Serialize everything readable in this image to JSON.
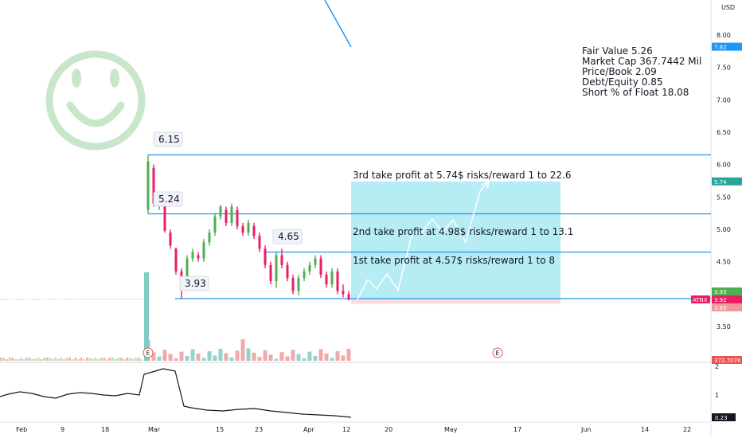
{
  "chart_data": {
    "type": "candlestick",
    "ticker": "ATNX",
    "currency": "USD",
    "y_axis_ticks": [
      "8.00",
      "7.50",
      "7.00",
      "6.50",
      "6.00",
      "5.50",
      "5.00",
      "4.50",
      "4.00",
      "3.50"
    ],
    "y_axis_range": [
      3.0,
      8.5
    ],
    "x_axis_ticks": [
      "Feb",
      "9",
      "18",
      "Mar",
      "15",
      "23",
      "Apr",
      "12",
      "20",
      "May",
      "17",
      "Jun",
      "14",
      "22"
    ],
    "price_tags": [
      {
        "text": "7.82",
        "value": 7.82,
        "color": "#2196f3"
      },
      {
        "text": "5.74",
        "value": 5.74,
        "color": "#26a69a"
      },
      {
        "text": "3.93",
        "value": 3.93,
        "color": "#4caf50"
      },
      {
        "text": "ATNX",
        "value": 3.92,
        "color": "#e91e63"
      },
      {
        "text": "3.92",
        "value": 3.92,
        "color": "#e91e63"
      },
      {
        "text": "3.85",
        "value": 3.85,
        "color": "#ef9a9a"
      },
      {
        "text": "372.707K",
        "value": null,
        "color": "#ef5350"
      }
    ],
    "levels": [
      {
        "price": 6.15,
        "label": "6.15"
      },
      {
        "price": 5.24,
        "label": "5.24"
      },
      {
        "price": 4.65,
        "label": "4.65"
      },
      {
        "price": 3.93,
        "label": "3.93"
      }
    ],
    "targets": [
      {
        "label": "3rd take profit at 5.74$ risks/reward 1 to 22.6",
        "price": 5.74
      },
      {
        "label": "2nd take profit at 4.98$ risks/reward 1 to 13.1",
        "price": 4.98
      },
      {
        "label": "1st take profit at 4.57$ risks/reward 1 to 8",
        "price": 4.57
      }
    ],
    "stop_zone": [
      3.85,
      3.93
    ],
    "profit_zone": [
      3.93,
      5.74
    ],
    "candles": [
      {
        "o": 5.3,
        "h": 6.15,
        "l": 5.24,
        "c": 6.05
      },
      {
        "o": 5.95,
        "h": 6.0,
        "l": 5.35,
        "c": 5.4
      },
      {
        "o": 5.4,
        "h": 5.5,
        "l": 5.3,
        "c": 5.45
      },
      {
        "o": 5.4,
        "h": 5.45,
        "l": 4.95,
        "c": 4.98
      },
      {
        "o": 4.95,
        "h": 5.0,
        "l": 4.7,
        "c": 4.75
      },
      {
        "o": 4.7,
        "h": 4.72,
        "l": 4.3,
        "c": 4.35
      },
      {
        "o": 4.35,
        "h": 4.4,
        "l": 3.93,
        "c": 4.2
      },
      {
        "o": 4.2,
        "h": 4.6,
        "l": 4.15,
        "c": 4.55
      },
      {
        "o": 4.55,
        "h": 4.7,
        "l": 4.5,
        "c": 4.65
      },
      {
        "o": 4.6,
        "h": 4.65,
        "l": 4.5,
        "c": 4.55
      },
      {
        "o": 4.55,
        "h": 4.85,
        "l": 4.5,
        "c": 4.8
      },
      {
        "o": 4.8,
        "h": 5.0,
        "l": 4.75,
        "c": 4.95
      },
      {
        "o": 4.95,
        "h": 5.25,
        "l": 4.9,
        "c": 5.2
      },
      {
        "o": 5.2,
        "h": 5.38,
        "l": 5.15,
        "c": 5.35
      },
      {
        "o": 5.3,
        "h": 5.35,
        "l": 5.05,
        "c": 5.1
      },
      {
        "o": 5.1,
        "h": 5.4,
        "l": 5.05,
        "c": 5.35
      },
      {
        "o": 5.3,
        "h": 5.35,
        "l": 5.0,
        "c": 5.05
      },
      {
        "o": 5.05,
        "h": 5.1,
        "l": 4.9,
        "c": 4.95
      },
      {
        "o": 4.95,
        "h": 5.15,
        "l": 4.9,
        "c": 5.1
      },
      {
        "o": 5.05,
        "h": 5.1,
        "l": 4.85,
        "c": 4.9
      },
      {
        "o": 4.9,
        "h": 4.95,
        "l": 4.65,
        "c": 4.7
      },
      {
        "o": 4.7,
        "h": 4.75,
        "l": 4.4,
        "c": 4.45
      },
      {
        "o": 4.45,
        "h": 4.5,
        "l": 4.15,
        "c": 4.2
      },
      {
        "o": 4.2,
        "h": 4.65,
        "l": 4.1,
        "c": 4.6
      },
      {
        "o": 4.6,
        "h": 4.7,
        "l": 4.4,
        "c": 4.45
      },
      {
        "o": 4.45,
        "h": 4.5,
        "l": 4.2,
        "c": 4.25
      },
      {
        "o": 4.25,
        "h": 4.3,
        "l": 4.0,
        "c": 4.05
      },
      {
        "o": 4.05,
        "h": 4.3,
        "l": 3.98,
        "c": 4.25
      },
      {
        "o": 4.25,
        "h": 4.4,
        "l": 4.2,
        "c": 4.35
      },
      {
        "o": 4.35,
        "h": 4.5,
        "l": 4.3,
        "c": 4.45
      },
      {
        "o": 4.45,
        "h": 4.6,
        "l": 4.4,
        "c": 4.55
      },
      {
        "o": 4.55,
        "h": 4.6,
        "l": 4.25,
        "c": 4.3
      },
      {
        "o": 4.3,
        "h": 4.35,
        "l": 4.1,
        "c": 4.15
      },
      {
        "o": 4.15,
        "h": 4.4,
        "l": 4.1,
        "c": 4.35
      },
      {
        "o": 4.35,
        "h": 4.4,
        "l": 4.0,
        "c": 4.05
      },
      {
        "o": 4.05,
        "h": 4.15,
        "l": 3.95,
        "c": 4.0
      },
      {
        "o": 4.0,
        "h": 4.05,
        "l": 3.9,
        "c": 3.92
      }
    ],
    "stats": [
      "Fair Value 5.26",
      "Market Cap 367.7442 Mil",
      "Price/Book 2.09",
      "Debt/Equity 0.85",
      "Short % of Float 18.08"
    ],
    "indicator_ticks": [
      "2",
      "1"
    ],
    "indicator_value": "0.23",
    "events": [
      "E",
      "E"
    ]
  }
}
